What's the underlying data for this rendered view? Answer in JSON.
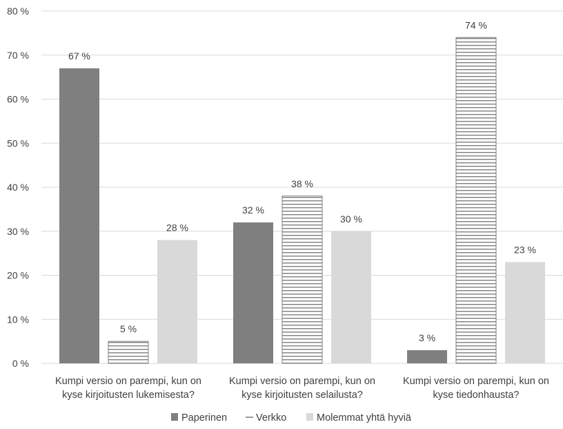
{
  "chart_data": {
    "type": "bar",
    "categories": [
      [
        "Kumpi versio on parempi, kun on",
        "kyse kirjoitusten lukemisesta?"
      ],
      [
        "Kumpi versio on parempi, kun on",
        "kyse kirjoitusten selailusta?"
      ],
      [
        "Kumpi versio on parempi, kun on",
        "kyse tiedonhausta?"
      ]
    ],
    "series": [
      {
        "name": "Paperinen",
        "values": [
          67,
          32,
          3
        ],
        "labels": [
          "67 %",
          "32 %",
          "3 %"
        ],
        "fill": "#7f7f7f",
        "pattern": "solid"
      },
      {
        "name": "Verkko",
        "values": [
          5,
          38,
          74
        ],
        "labels": [
          "5 %",
          "38 %",
          "74 %"
        ],
        "fill": "#ffffff",
        "pattern": "horizontal-stripes"
      },
      {
        "name": "Molemmat yhtä hyviä",
        "values": [
          28,
          30,
          23
        ],
        "labels": [
          "28 %",
          "30 %",
          "23 %"
        ],
        "fill": "#d9d9d9",
        "pattern": "solid"
      }
    ],
    "y_ticks": [
      0,
      10,
      20,
      30,
      40,
      50,
      60,
      70,
      80
    ],
    "y_tick_labels": [
      "0 %",
      "10 %",
      "20 %",
      "30 %",
      "40 %",
      "50 %",
      "60 %",
      "70 %",
      "80 %"
    ],
    "ylim": [
      0,
      80
    ],
    "grid": true,
    "legend_position": "bottom",
    "colors": {
      "gridline": "#d9d9d9",
      "text": "#404040",
      "stripe": "#7f7f7f"
    }
  }
}
